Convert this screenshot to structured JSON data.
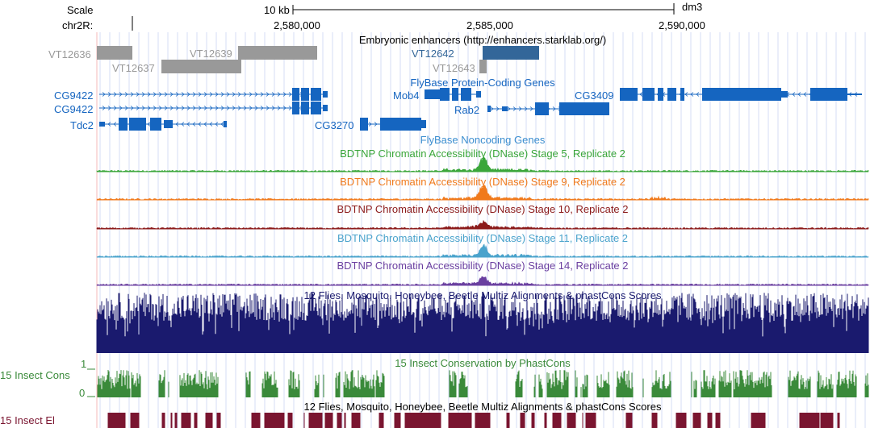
{
  "header": {
    "scale_label": "Scale",
    "chrom_label": "chr2R:",
    "scale_bar_text": "10 kb",
    "assembly": "dm3",
    "positions": [
      "2,580,000",
      "2,585,000",
      "2,590,000"
    ]
  },
  "tracks": {
    "enhancers": {
      "title": "Embryonic enhancers (http://enhancers.starklab.org/)",
      "items": [
        "VT12636",
        "VT12637",
        "VT12639",
        "VT12642",
        "VT12643"
      ]
    },
    "flybase_coding": {
      "title": "FlyBase Protein-Coding Genes",
      "genes": [
        "CG9422",
        "CG9422",
        "Tdc2",
        "CG3270",
        "Mob4",
        "Rab2",
        "CG3409"
      ]
    },
    "flybase_noncoding": {
      "title": "FlyBase Noncoding Genes"
    },
    "dnase": [
      {
        "title": "BDTNP Chromatin Accessibility (DNase) Stage 5, Replicate 2",
        "color": "#3aa63a"
      },
      {
        "title": "BDTNP Chromatin Accessibility (DNase) Stage 9, Replicate 2",
        "color": "#f07a1c"
      },
      {
        "title": "BDTNP Chromatin Accessibility (DNase) Stage 10, Replicate 2",
        "color": "#8b1a1a"
      },
      {
        "title": "BDTNP Chromatin Accessibility (DNase) Stage 11, Replicate 2",
        "color": "#4aa3cc"
      },
      {
        "title": "BDTNP Chromatin Accessibility (DNase) Stage 14, Replicate 2",
        "color": "#6a3fa0"
      }
    ],
    "multiz": {
      "title": "12 Flies, Mosquito, Honeybee, Beetle Multiz Alignments & phastCons Scores",
      "color": "#1a1a6e"
    },
    "phastcons": {
      "title": "15 Insect Conservation by PhastCons",
      "side_label": "15 Insect Cons",
      "axis_max": "1",
      "axis_min": "0",
      "color": "#3a8a3a"
    },
    "elements": {
      "title": "12 Flies, Mosquito, Honeybee, Beetle Multiz Alignments & phastCons Scores",
      "side_label": "15 Insect El",
      "color": "#7a1530"
    }
  },
  "colors": {
    "gene": "#1565c0",
    "enhancer_grey": "#999999",
    "enhancer_blue": "#336699"
  }
}
